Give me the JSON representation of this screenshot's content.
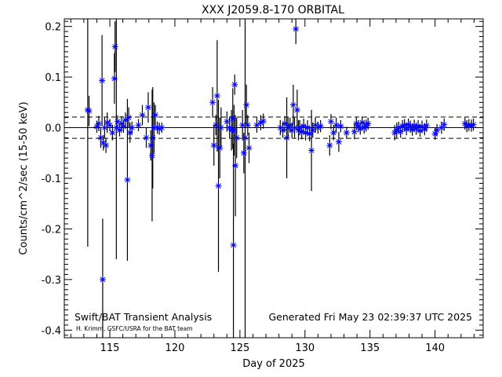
{
  "chart_data": {
    "type": "scatter",
    "title": "XXX J2059.8-170 ORBITAL",
    "xlabel": "Day of 2025",
    "ylabel": "Counts/cm^2/sec (15-50 keV)",
    "xlim": [
      111.5,
      143.7
    ],
    "ylim": [
      -0.415,
      0.215
    ],
    "xticks": [
      115,
      120,
      125,
      130,
      135,
      140
    ],
    "yticks": [
      -0.4,
      -0.3,
      -0.2,
      -0.1,
      0.0,
      0.1,
      0.2
    ],
    "ytick_labels": [
      "-0.4",
      "-0.3",
      "-0.2",
      "-0.1",
      "0.0",
      "0.1",
      "0.2"
    ],
    "reference_lines": {
      "zero": 0.0,
      "upper": 0.021,
      "lower": -0.021
    },
    "annotations": {
      "left": "Swift/BAT Transient Analysis",
      "credit": "H. Krimm, GSFC/USRA for the BAT team",
      "right": "Generated Fri May 23 02:39:37 UTC 2025"
    },
    "marker_color": "#0000ff",
    "points": [
      {
        "x": 113.3,
        "y": 0.035,
        "err": 0.27
      },
      {
        "x": 113.4,
        "y": 0.033,
        "err": 0.03
      },
      {
        "x": 114.0,
        "y": 0.002,
        "err": 0.012
      },
      {
        "x": 114.15,
        "y": 0.008,
        "err": 0.015
      },
      {
        "x": 114.3,
        "y": -0.02,
        "err": 0.02
      },
      {
        "x": 114.4,
        "y": 0.093,
        "err": 0.09
      },
      {
        "x": 114.45,
        "y": -0.3,
        "err": 0.12
      },
      {
        "x": 114.5,
        "y": -0.03,
        "err": 0.015
      },
      {
        "x": 114.6,
        "y": 0.0,
        "err": 0.02
      },
      {
        "x": 114.7,
        "y": -0.035,
        "err": 0.015
      },
      {
        "x": 114.8,
        "y": 0.01,
        "err": 0.02
      },
      {
        "x": 115.0,
        "y": 0.005,
        "err": 0.012
      },
      {
        "x": 115.2,
        "y": -0.01,
        "err": 0.015
      },
      {
        "x": 115.35,
        "y": 0.097,
        "err": 0.05
      },
      {
        "x": 115.4,
        "y": 0.16,
        "err": 0.05
      },
      {
        "x": 115.5,
        "y": 0.0,
        "err": 0.26
      },
      {
        "x": 115.6,
        "y": 0.012,
        "err": 0.012
      },
      {
        "x": 115.75,
        "y": -0.005,
        "err": 0.012
      },
      {
        "x": 115.9,
        "y": 0.008,
        "err": 0.015
      },
      {
        "x": 116.05,
        "y": 0.002,
        "err": 0.012
      },
      {
        "x": 116.2,
        "y": 0.015,
        "err": 0.015
      },
      {
        "x": 116.35,
        "y": -0.103,
        "err": 0.16
      },
      {
        "x": 116.45,
        "y": 0.02,
        "err": 0.02
      },
      {
        "x": 116.55,
        "y": -0.01,
        "err": 0.02
      },
      {
        "x": 116.7,
        "y": 0.0,
        "err": 0.012
      },
      {
        "x": 117.2,
        "y": 0.005,
        "err": 0.012
      },
      {
        "x": 117.5,
        "y": 0.025,
        "err": 0.02
      },
      {
        "x": 117.8,
        "y": -0.02,
        "err": 0.02
      },
      {
        "x": 117.95,
        "y": 0.04,
        "err": 0.03
      },
      {
        "x": 118.15,
        "y": -0.035,
        "err": 0.03
      },
      {
        "x": 118.25,
        "y": -0.055,
        "err": 0.13
      },
      {
        "x": 118.3,
        "y": -0.02,
        "err": 0.1
      },
      {
        "x": 118.4,
        "y": 0.0,
        "err": 0.05
      },
      {
        "x": 118.5,
        "y": 0.025,
        "err": 0.02
      },
      {
        "x": 118.65,
        "y": 0.0,
        "err": 0.012
      },
      {
        "x": 118.8,
        "y": -0.002,
        "err": 0.012
      },
      {
        "x": 119.0,
        "y": 0.0,
        "err": 0.01
      },
      {
        "x": 122.9,
        "y": 0.05,
        "err": 0.03
      },
      {
        "x": 123.0,
        "y": -0.035,
        "err": 0.04
      },
      {
        "x": 123.15,
        "y": 0.005,
        "err": 0.02
      },
      {
        "x": 123.25,
        "y": 0.063,
        "err": 0.11
      },
      {
        "x": 123.35,
        "y": -0.115,
        "err": 0.17
      },
      {
        "x": 123.45,
        "y": -0.04,
        "err": 0.06
      },
      {
        "x": 123.55,
        "y": 0.0,
        "err": 0.04
      },
      {
        "x": 124.0,
        "y": 0.012,
        "err": 0.02
      },
      {
        "x": 124.2,
        "y": 0.0,
        "err": 0.02
      },
      {
        "x": 124.35,
        "y": -0.005,
        "err": 0.04
      },
      {
        "x": 124.45,
        "y": 0.018,
        "err": 0.06
      },
      {
        "x": 124.5,
        "y": -0.232,
        "err": 0.2
      },
      {
        "x": 124.55,
        "y": -0.005,
        "err": 0.05
      },
      {
        "x": 124.6,
        "y": 0.085,
        "err": 0.02
      },
      {
        "x": 124.65,
        "y": -0.075,
        "err": 0.1
      },
      {
        "x": 124.75,
        "y": -0.02,
        "err": 0.04
      },
      {
        "x": 125.2,
        "y": 0.005,
        "err": 0.03
      },
      {
        "x": 125.3,
        "y": -0.05,
        "err": 0.04
      },
      {
        "x": 125.4,
        "y": -0.02,
        "err": 0.4
      },
      {
        "x": 125.5,
        "y": 0.045,
        "err": 0.04
      },
      {
        "x": 125.6,
        "y": 0.005,
        "err": 0.02
      },
      {
        "x": 125.7,
        "y": -0.04,
        "err": 0.03
      },
      {
        "x": 126.3,
        "y": 0.005,
        "err": 0.015
      },
      {
        "x": 126.6,
        "y": 0.01,
        "err": 0.015
      },
      {
        "x": 126.8,
        "y": 0.013,
        "err": 0.015
      },
      {
        "x": 128.1,
        "y": 0.0,
        "err": 0.015
      },
      {
        "x": 128.3,
        "y": -0.005,
        "err": 0.015
      },
      {
        "x": 128.45,
        "y": 0.008,
        "err": 0.015
      },
      {
        "x": 128.6,
        "y": -0.02,
        "err": 0.08
      },
      {
        "x": 128.7,
        "y": 0.0,
        "err": 0.02
      },
      {
        "x": 128.85,
        "y": 0.005,
        "err": 0.015
      },
      {
        "x": 129.0,
        "y": -0.005,
        "err": 0.015
      },
      {
        "x": 129.1,
        "y": 0.045,
        "err": 0.04
      },
      {
        "x": 129.2,
        "y": 0.0,
        "err": 0.02
      },
      {
        "x": 129.3,
        "y": 0.195,
        "err": 0.03
      },
      {
        "x": 129.4,
        "y": 0.035,
        "err": 0.04
      },
      {
        "x": 129.5,
        "y": -0.005,
        "err": 0.02
      },
      {
        "x": 129.6,
        "y": 0.0,
        "err": 0.015
      },
      {
        "x": 129.75,
        "y": -0.008,
        "err": 0.015
      },
      {
        "x": 129.9,
        "y": 0.003,
        "err": 0.015
      },
      {
        "x": 130.05,
        "y": -0.01,
        "err": 0.015
      },
      {
        "x": 130.2,
        "y": 0.0,
        "err": 0.015
      },
      {
        "x": 130.35,
        "y": -0.012,
        "err": 0.015
      },
      {
        "x": 130.5,
        "y": -0.045,
        "err": 0.08
      },
      {
        "x": 130.6,
        "y": -0.005,
        "err": 0.015
      },
      {
        "x": 130.8,
        "y": 0.005,
        "err": 0.015
      },
      {
        "x": 131.0,
        "y": 0.0,
        "err": 0.012
      },
      {
        "x": 131.2,
        "y": 0.003,
        "err": 0.012
      },
      {
        "x": 131.9,
        "y": -0.035,
        "err": 0.02
      },
      {
        "x": 132.0,
        "y": 0.012,
        "err": 0.015
      },
      {
        "x": 132.2,
        "y": -0.01,
        "err": 0.015
      },
      {
        "x": 132.4,
        "y": 0.005,
        "err": 0.015
      },
      {
        "x": 132.6,
        "y": -0.028,
        "err": 0.02
      },
      {
        "x": 132.75,
        "y": 0.003,
        "err": 0.012
      },
      {
        "x": 133.2,
        "y": -0.01,
        "err": 0.012
      },
      {
        "x": 133.8,
        "y": -0.008,
        "err": 0.015
      },
      {
        "x": 133.95,
        "y": 0.008,
        "err": 0.012
      },
      {
        "x": 134.1,
        "y": 0.003,
        "err": 0.012
      },
      {
        "x": 134.25,
        "y": -0.002,
        "err": 0.012
      },
      {
        "x": 134.4,
        "y": 0.01,
        "err": 0.012
      },
      {
        "x": 134.55,
        "y": 0.0,
        "err": 0.012
      },
      {
        "x": 134.7,
        "y": 0.004,
        "err": 0.012
      },
      {
        "x": 134.85,
        "y": 0.008,
        "err": 0.012
      },
      {
        "x": 136.9,
        "y": -0.01,
        "err": 0.015
      },
      {
        "x": 137.05,
        "y": -0.005,
        "err": 0.015
      },
      {
        "x": 137.2,
        "y": 0.0,
        "err": 0.012
      },
      {
        "x": 137.35,
        "y": -0.008,
        "err": 0.012
      },
      {
        "x": 137.5,
        "y": 0.003,
        "err": 0.012
      },
      {
        "x": 137.65,
        "y": 0.005,
        "err": 0.012
      },
      {
        "x": 137.8,
        "y": -0.003,
        "err": 0.012
      },
      {
        "x": 137.95,
        "y": 0.006,
        "err": 0.012
      },
      {
        "x": 138.1,
        "y": 0.002,
        "err": 0.012
      },
      {
        "x": 138.25,
        "y": -0.004,
        "err": 0.012
      },
      {
        "x": 138.4,
        "y": 0.004,
        "err": 0.012
      },
      {
        "x": 138.55,
        "y": -0.002,
        "err": 0.012
      },
      {
        "x": 138.7,
        "y": 0.003,
        "err": 0.012
      },
      {
        "x": 138.85,
        "y": -0.006,
        "err": 0.012
      },
      {
        "x": 139.0,
        "y": 0.002,
        "err": 0.012
      },
      {
        "x": 139.2,
        "y": -0.003,
        "err": 0.012
      },
      {
        "x": 139.35,
        "y": 0.004,
        "err": 0.012
      },
      {
        "x": 140.0,
        "y": -0.012,
        "err": 0.012
      },
      {
        "x": 140.15,
        "y": -0.005,
        "err": 0.012
      },
      {
        "x": 140.5,
        "y": 0.0,
        "err": 0.012
      },
      {
        "x": 140.7,
        "y": 0.006,
        "err": 0.012
      },
      {
        "x": 142.3,
        "y": 0.008,
        "err": 0.012
      },
      {
        "x": 142.45,
        "y": 0.003,
        "err": 0.012
      },
      {
        "x": 142.6,
        "y": 0.005,
        "err": 0.012
      },
      {
        "x": 142.8,
        "y": 0.004,
        "err": 0.012
      },
      {
        "x": 142.95,
        "y": 0.006,
        "err": 0.012
      }
    ]
  }
}
